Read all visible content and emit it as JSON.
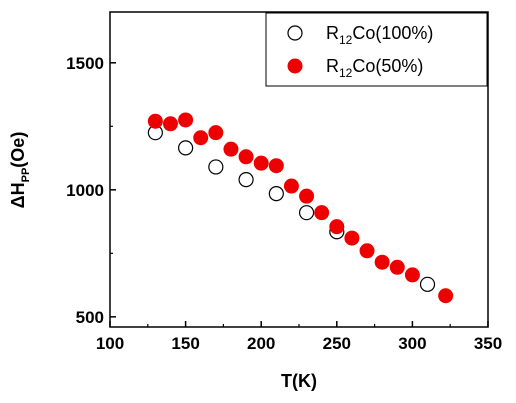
{
  "chart_data": {
    "type": "scatter",
    "xlabel": "T(K)",
    "ylabel_main": "ΔH",
    "ylabel_sub": "PP",
    "ylabel_unit": "(Oe)",
    "xlim": [
      100,
      350
    ],
    "ylim": [
      460,
      1700
    ],
    "xticks": [
      100,
      150,
      200,
      250,
      300,
      350
    ],
    "yticks": [
      500,
      1000,
      1500
    ],
    "legend_position": "top-right",
    "series": [
      {
        "name_main": "R",
        "name_sub": "12",
        "name_rest": "Co(100%)",
        "marker": "open-circle",
        "color": "#000000",
        "x": [
          130,
          150,
          170,
          190,
          210,
          230,
          250,
          310
        ],
        "y": [
          1225,
          1165,
          1090,
          1040,
          985,
          910,
          835,
          628
        ]
      },
      {
        "name_main": "R",
        "name_sub": "12",
        "name_rest": "Co(50%)",
        "marker": "filled-circle",
        "color": "#ee0000",
        "x": [
          130,
          140,
          150,
          160,
          170,
          180,
          190,
          200,
          210,
          220,
          230,
          240,
          250,
          260,
          270,
          280,
          290,
          300,
          322
        ],
        "y": [
          1270,
          1260,
          1275,
          1205,
          1225,
          1160,
          1130,
          1105,
          1095,
          1015,
          975,
          910,
          855,
          810,
          760,
          715,
          695,
          665,
          583
        ]
      }
    ]
  }
}
